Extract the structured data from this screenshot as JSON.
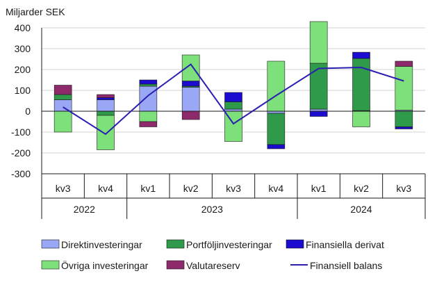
{
  "chart_data": {
    "type": "stacked-bar-with-line",
    "ylabel": "Miljarder SEK",
    "ylim": [
      -300,
      400
    ],
    "yticks": [
      400,
      300,
      200,
      100,
      0,
      -100,
      -200,
      -300
    ],
    "categories": [
      "kv3",
      "kv4",
      "kv1",
      "kv2",
      "kv3",
      "kv4",
      "kv1",
      "kv2",
      "kv3"
    ],
    "years": [
      {
        "label": "2022",
        "span": [
          0,
          1
        ]
      },
      {
        "label": "2023",
        "span": [
          2,
          5
        ]
      },
      {
        "label": "2024",
        "span": [
          6,
          8
        ]
      }
    ],
    "series": [
      {
        "name": "Direktinvesteringar",
        "color": "#9aa7f5",
        "values": [
          55,
          55,
          120,
          115,
          10,
          -10,
          10,
          3,
          5
        ]
      },
      {
        "name": "Portföljinvesteringar",
        "color": "#2e9a4a",
        "values": [
          25,
          -20,
          10,
          5,
          35,
          -150,
          220,
          250,
          -75
        ]
      },
      {
        "name": "Finansiella derivat",
        "color": "#1b0ccf",
        "values": [
          0,
          10,
          20,
          25,
          45,
          -20,
          -25,
          30,
          -10
        ]
      },
      {
        "name": "Övriga investeringar",
        "color": "#7ee07a",
        "values": [
          -100,
          -165,
          -50,
          125,
          -145,
          240,
          200,
          -75,
          210
        ]
      },
      {
        "name": "Valutareserv",
        "color": "#8e2a6c",
        "values": [
          45,
          15,
          -25,
          -40,
          0,
          0,
          0,
          0,
          25
        ]
      }
    ],
    "line": {
      "name": "Finansiell balans",
      "color": "#2a1fb0",
      "values": [
        20,
        -110,
        75,
        225,
        -60,
        75,
        205,
        210,
        145
      ]
    }
  }
}
